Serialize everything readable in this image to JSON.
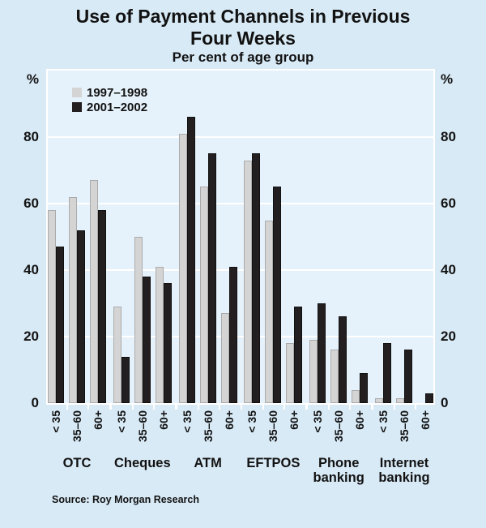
{
  "header": {
    "title_line1": "Use of Payment Channels in Previous",
    "title_line2": "Four Weeks",
    "subtitle": "Per cent of age group"
  },
  "footer": {
    "source": "Source: Roy Morgan Research"
  },
  "colors": {
    "background": "#d8eaf6",
    "plot_background": "#e6f2fb",
    "gridline": "#ffffff",
    "series_1997_1998": "#d4d4d4",
    "series_2001_2002": "#231f20",
    "text": "#121212"
  },
  "chart_data": {
    "type": "bar",
    "title": "Use of Payment Channels in Previous Four Weeks",
    "subtitle": "Per cent of age group",
    "unit": "%",
    "ylim": [
      0,
      100
    ],
    "yticks": [
      0,
      20,
      40,
      60,
      80
    ],
    "grid": true,
    "legend_position": "top-left",
    "categories": [
      "OTC",
      "Cheques",
      "ATM",
      "EFTPOS",
      "Phone banking",
      "Internet banking"
    ],
    "category_labels": [
      "OTC",
      "Cheques",
      "ATM",
      "EFTPOS",
      "Phone\nbanking",
      "Internet\nbanking"
    ],
    "age_groups": [
      "< 35",
      "35–60",
      "60+"
    ],
    "series": [
      {
        "name": "1997–1998",
        "color": "#d4d4d4",
        "values": [
          [
            58,
            62,
            67
          ],
          [
            29,
            50,
            41
          ],
          [
            81,
            65,
            27
          ],
          [
            73,
            55,
            18
          ],
          [
            19,
            16,
            4
          ],
          [
            1.5,
            1.5,
            0
          ]
        ]
      },
      {
        "name": "2001–2002",
        "color": "#231f20",
        "values": [
          [
            47,
            52,
            58
          ],
          [
            14,
            38,
            36
          ],
          [
            86,
            75,
            41
          ],
          [
            75,
            65,
            29
          ],
          [
            30,
            26,
            9
          ],
          [
            18,
            16,
            3
          ]
        ]
      }
    ]
  }
}
